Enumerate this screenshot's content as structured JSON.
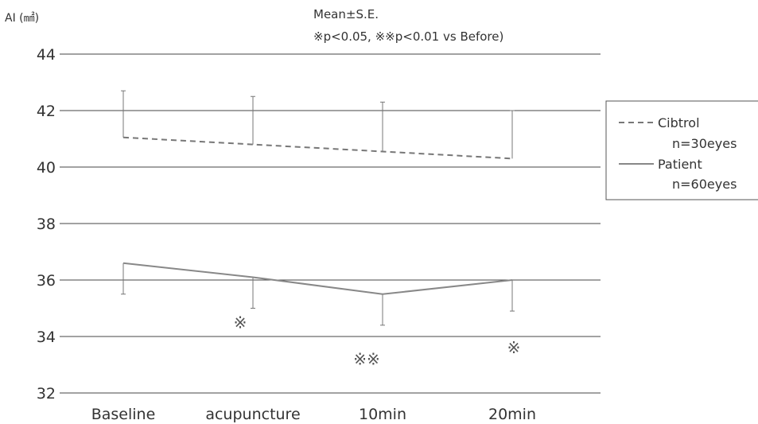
{
  "chart_data": {
    "type": "line",
    "ylabel": "AI (㎟)",
    "annotation_line1": "Mean±S.E.",
    "annotation_line2": "※p<0.05, ※※p<0.01 vs Before)",
    "categories": [
      "Baseline",
      "acupuncture",
      "10min",
      "20min"
    ],
    "ylim": [
      32,
      44
    ],
    "yticks": [
      32,
      34,
      36,
      38,
      40,
      42,
      44
    ],
    "grid": true,
    "legend_position": "right",
    "series": [
      {
        "name": "Cibtrol",
        "n_label": "n=30eyes",
        "style": "dashed",
        "color": "#777777",
        "values": [
          41.05,
          40.8,
          40.55,
          40.3
        ],
        "error_upper": [
          42.7,
          42.5,
          42.3,
          42.0
        ]
      },
      {
        "name": "Patient",
        "n_label": "n=60eyes",
        "style": "solid",
        "color": "#888888",
        "values": [
          36.6,
          36.1,
          35.5,
          36.0
        ],
        "error_lower": [
          35.5,
          35.0,
          34.4,
          34.9
        ]
      }
    ],
    "significance_marks": [
      {
        "category": "Baseline",
        "text": ""
      },
      {
        "category": "acupuncture",
        "text": "※",
        "y": 34.5
      },
      {
        "category": "10min",
        "text": "※※",
        "y": 33.2
      },
      {
        "category": "20min",
        "text": "※",
        "y": 33.6
      }
    ]
  }
}
